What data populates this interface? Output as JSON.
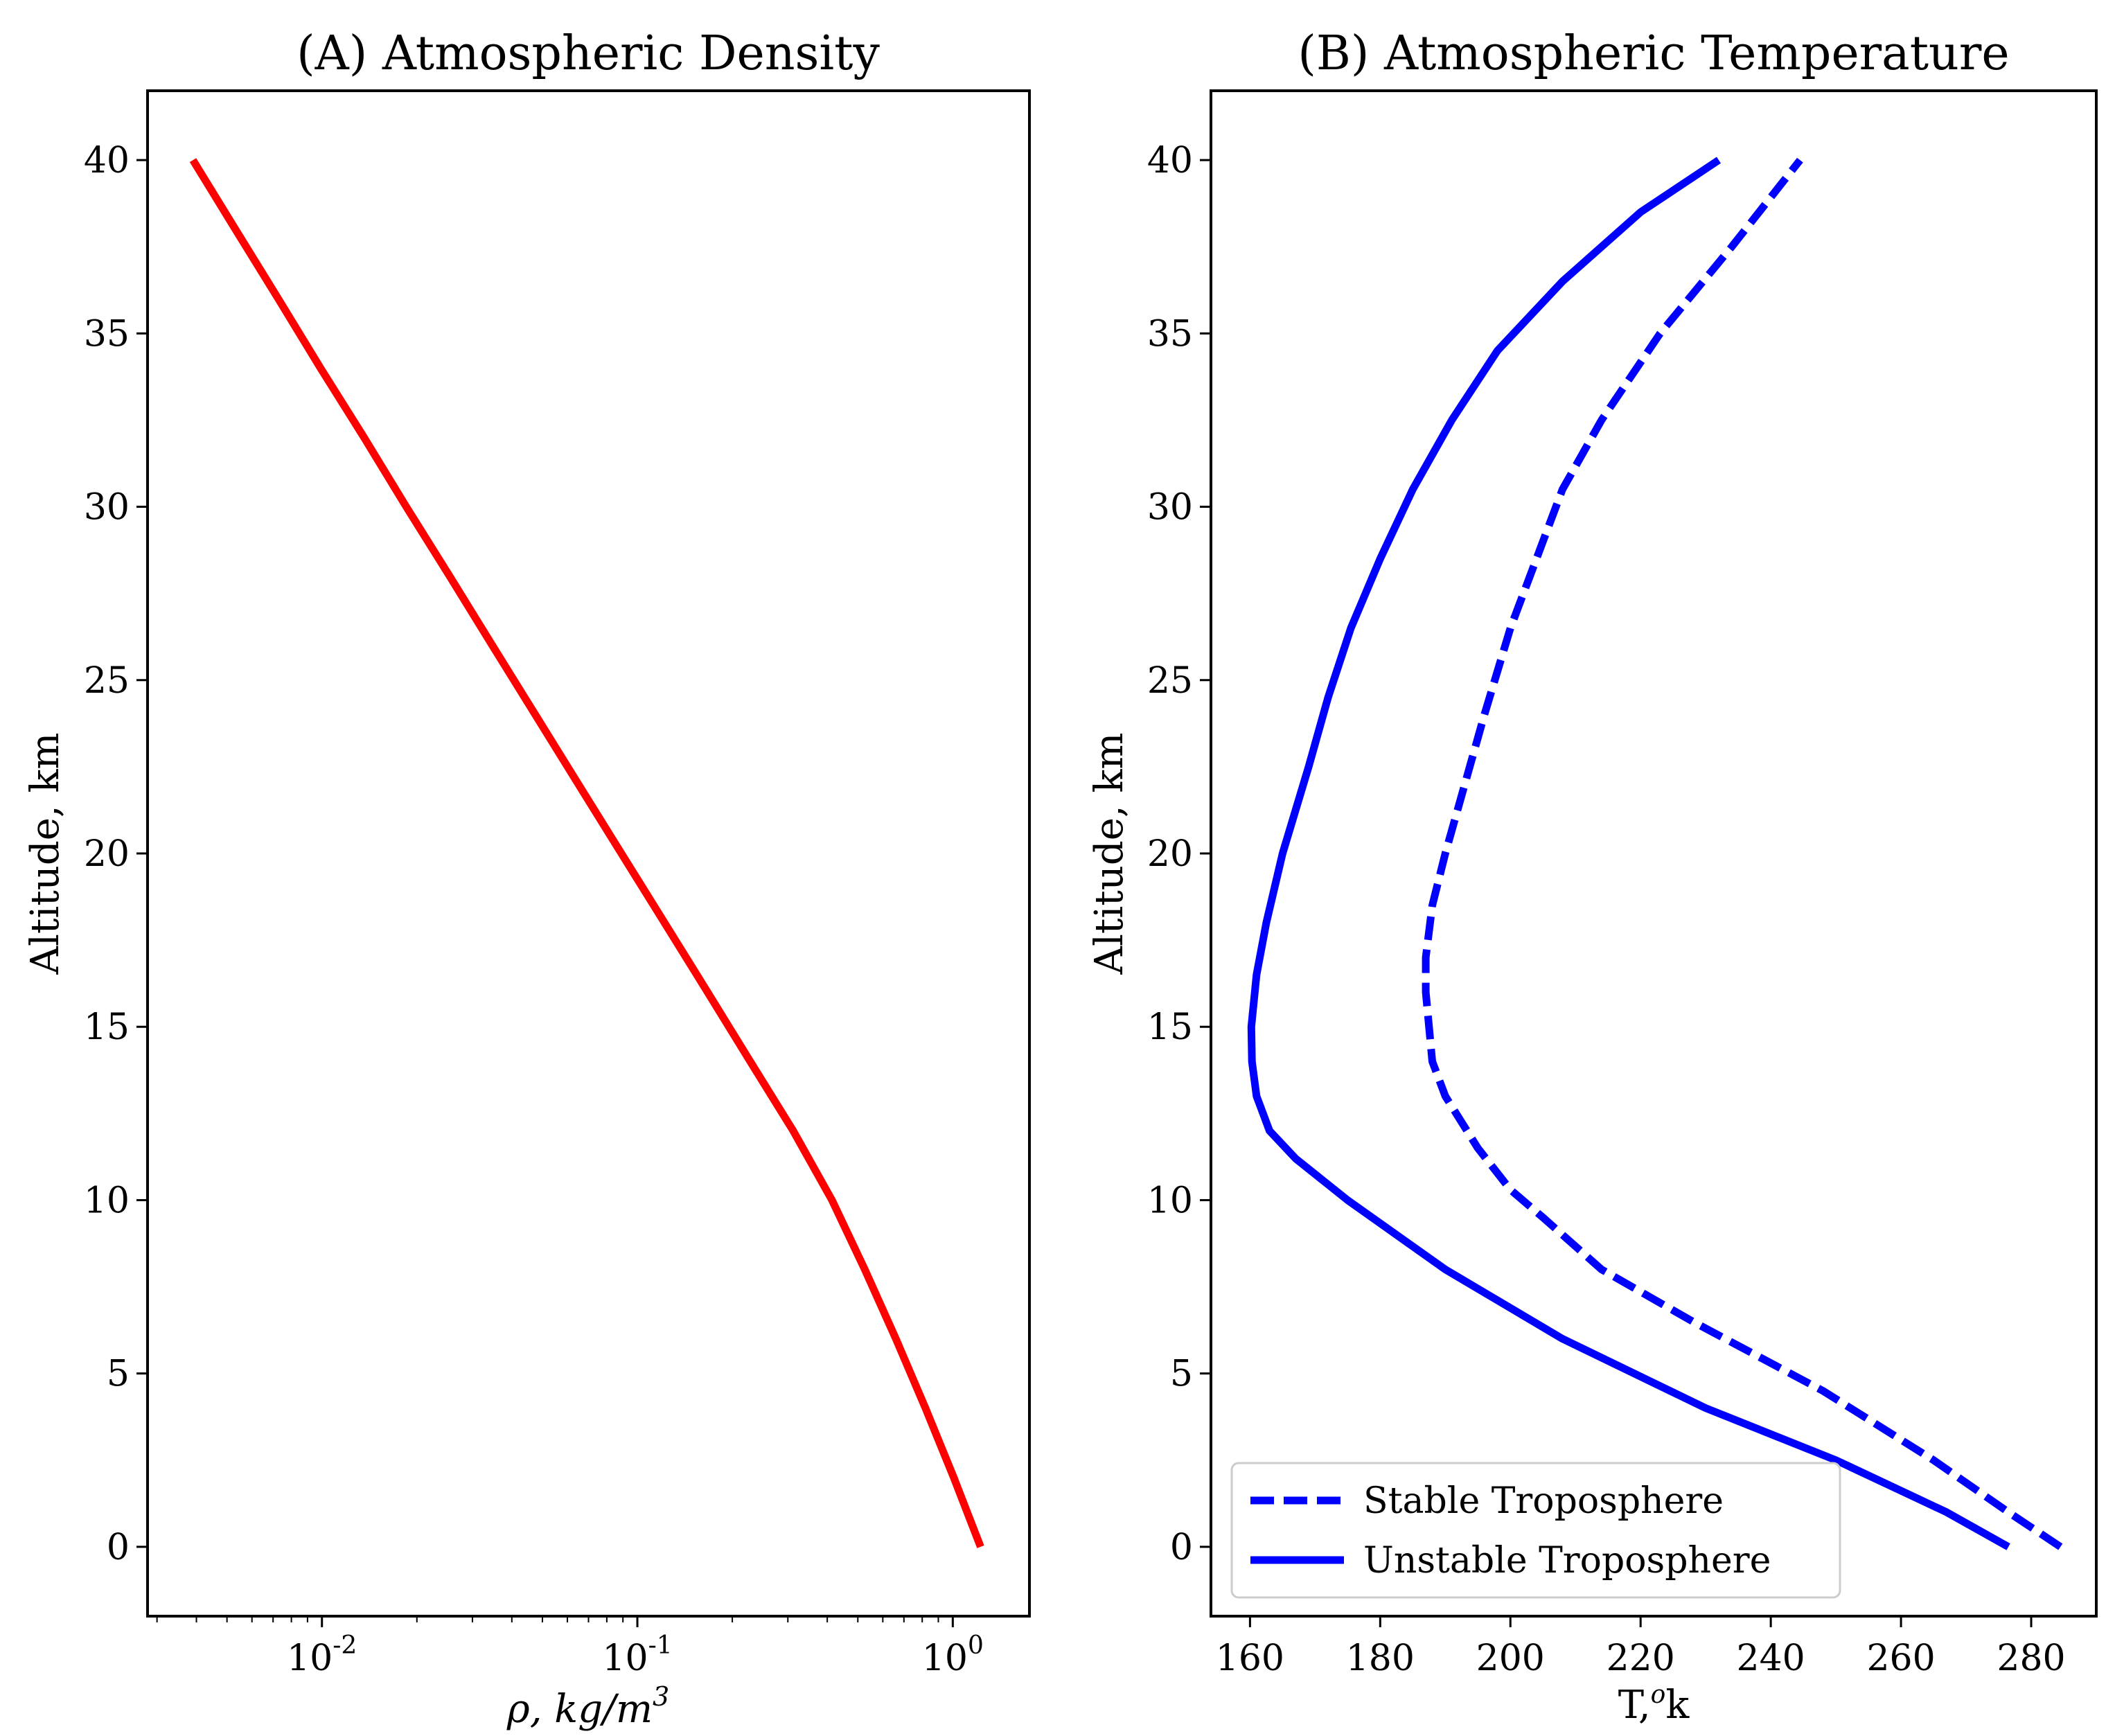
{
  "chart_data": [
    {
      "type": "line",
      "title": "(A) Atmospheric Density",
      "xlabel": "ρ, kg/m³",
      "xlabel_parts": {
        "symbol": "ρ",
        "sep": ", ",
        "unit": "kg/m",
        "exp": "3"
      },
      "ylabel": "Altitude, km",
      "xscale": "log",
      "xlim": [
        0.0028,
        1.75
      ],
      "ylim": [
        -2,
        42
      ],
      "xticks": [
        {
          "value": 0.01,
          "base": "10",
          "exp": "-2"
        },
        {
          "value": 0.1,
          "base": "10",
          "exp": "-1"
        },
        {
          "value": 1.0,
          "base": "10",
          "exp": "0"
        }
      ],
      "yticks": [
        0,
        5,
        10,
        15,
        20,
        25,
        30,
        35,
        40
      ],
      "series": [
        {
          "name": "Density",
          "color": "#ff0000",
          "style": "solid",
          "x": [
            1.225,
            1.007,
            0.819,
            0.66,
            0.526,
            0.414,
            0.312,
            0.228,
            0.167,
            0.122,
            0.089,
            0.065,
            0.0475,
            0.0347,
            0.0254,
            0.0185,
            0.0136,
            0.0099,
            0.00727,
            0.00532,
            0.0039
          ],
          "y": [
            0,
            2,
            4,
            6,
            8,
            10,
            12,
            14,
            16,
            18,
            20,
            22,
            24,
            26,
            28,
            30,
            32,
            34,
            36,
            38,
            40
          ]
        }
      ]
    },
    {
      "type": "line",
      "title": "(B) Atmospheric Temperature",
      "xlabel": "T, ºk",
      "xlabel_parts": {
        "symbol": "T,",
        "deg": "o",
        "unit": "k"
      },
      "ylabel": "Altitude, km",
      "xlim": [
        154,
        290
      ],
      "ylim": [
        -2,
        42
      ],
      "xticks": [
        160,
        180,
        200,
        220,
        240,
        260,
        280
      ],
      "yticks": [
        0,
        5,
        10,
        15,
        20,
        25,
        30,
        35,
        40
      ],
      "legend": {
        "location": "lower-left",
        "entries": [
          "Stable Troposphere",
          "Unstable Troposphere"
        ]
      },
      "series": [
        {
          "name": "Stable Troposphere",
          "color": "#0000ff",
          "style": "dashed",
          "x": [
            284.5,
            276.5,
            265,
            248,
            228,
            214,
            205,
            200,
            195,
            190,
            188,
            187.5,
            187,
            187,
            188,
            190,
            193,
            196,
            200,
            204,
            208,
            214,
            223,
            234,
            244.5
          ],
          "y": [
            0,
            1,
            2.5,
            4.5,
            6.5,
            8,
            9.5,
            10.3,
            11.5,
            13,
            14,
            15,
            16,
            17,
            18.5,
            20,
            22,
            24,
            26.5,
            28.5,
            30.5,
            32.5,
            35,
            37.5,
            40
          ]
        },
        {
          "name": "Unstable Troposphere",
          "color": "#0000ff",
          "style": "solid",
          "x": [
            276.5,
            267,
            250,
            230,
            208,
            190,
            175,
            167,
            163,
            161,
            160.3,
            160.2,
            161,
            162.5,
            165,
            169,
            172,
            175.5,
            180,
            185,
            191,
            198,
            208,
            220,
            232
          ],
          "y": [
            0,
            1,
            2.5,
            4,
            6,
            8,
            10,
            11.2,
            12,
            13,
            14,
            15,
            16.5,
            18,
            20,
            22.5,
            24.5,
            26.5,
            28.5,
            30.5,
            32.5,
            34.5,
            36.5,
            38.5,
            40
          ]
        }
      ]
    }
  ]
}
